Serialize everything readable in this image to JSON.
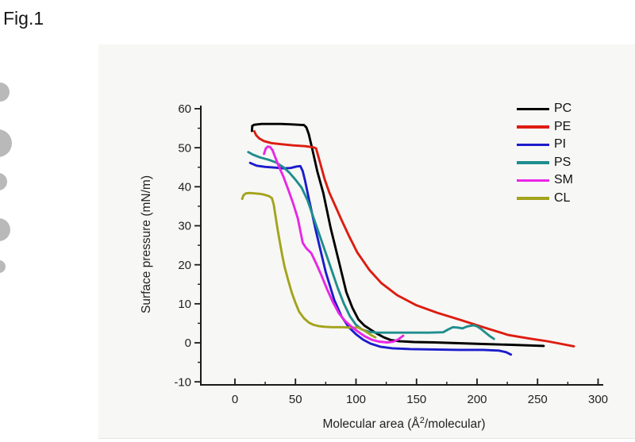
{
  "figure_label": "Fig.1",
  "chart_data": {
    "type": "line",
    "title": "",
    "xlabel": "Molecular area (Å²/molecular)",
    "xlabel_parts": {
      "pre": "Molecular area (Å",
      "sup": "2",
      "post": "/molecular)"
    },
    "ylabel": "Surface pressure (mN/m)",
    "xlim": [
      -28,
      305
    ],
    "ylim": [
      -10.8,
      60.8
    ],
    "x_ticks": [
      0,
      50,
      100,
      150,
      200,
      250,
      300
    ],
    "x_minor_ticks": [
      25,
      75,
      125,
      175,
      225,
      275
    ],
    "y_ticks": [
      -10,
      0,
      10,
      20,
      30,
      40,
      50,
      60
    ],
    "y_minor_ticks": [
      -5,
      5,
      15,
      25,
      35,
      45,
      55
    ],
    "grid": false,
    "legend": {
      "position": "top-right",
      "entries": [
        "PC",
        "PE",
        "PI",
        "PS",
        "SM",
        "CL"
      ]
    },
    "series": [
      {
        "name": "PC",
        "color": "#000000",
        "points": [
          [
            14,
            54.3
          ],
          [
            14.3,
            55.6
          ],
          [
            16,
            55.9
          ],
          [
            22,
            56.1
          ],
          [
            30,
            56.1
          ],
          [
            38,
            56.1
          ],
          [
            46,
            56.0
          ],
          [
            52,
            55.9
          ],
          [
            57,
            55.8
          ],
          [
            59,
            55.2
          ],
          [
            61,
            53.5
          ],
          [
            64,
            49.5
          ],
          [
            68,
            44.0
          ],
          [
            73,
            38.4
          ],
          [
            79,
            29.5
          ],
          [
            86,
            20.7
          ],
          [
            92,
            13.0
          ],
          [
            97,
            9.0
          ],
          [
            102,
            6.0
          ],
          [
            107,
            4.4
          ],
          [
            112,
            3.4
          ],
          [
            117,
            2.4
          ],
          [
            123,
            1.4
          ],
          [
            129,
            0.7
          ],
          [
            136,
            0.4
          ],
          [
            148,
            0.2
          ],
          [
            165,
            0.1
          ],
          [
            185,
            -0.1
          ],
          [
            205,
            -0.3
          ],
          [
            228,
            -0.5
          ],
          [
            255,
            -0.8
          ]
        ]
      },
      {
        "name": "PE",
        "color": "#dd1c10",
        "points": [
          [
            16,
            54.2
          ],
          [
            17.5,
            53.2
          ],
          [
            20,
            52.4
          ],
          [
            24,
            51.7
          ],
          [
            30,
            51.2
          ],
          [
            38,
            50.9
          ],
          [
            48,
            50.6
          ],
          [
            58,
            50.4
          ],
          [
            65,
            50.1
          ],
          [
            67,
            49.8
          ],
          [
            70,
            46.5
          ],
          [
            74,
            42.0
          ],
          [
            78,
            38.5
          ],
          [
            83,
            35.0
          ],
          [
            88,
            31.5
          ],
          [
            94,
            27.5
          ],
          [
            101,
            23.2
          ],
          [
            111,
            18.7
          ],
          [
            121,
            15.3
          ],
          [
            134,
            12.2
          ],
          [
            150,
            9.6
          ],
          [
            167,
            7.7
          ],
          [
            186,
            5.9
          ],
          [
            206,
            3.9
          ],
          [
            226,
            2.0
          ],
          [
            243,
            1.1
          ],
          [
            258,
            0.4
          ],
          [
            270,
            -0.3
          ],
          [
            280,
            -0.9
          ]
        ]
      },
      {
        "name": "PI",
        "color": "#1c1ccc",
        "points": [
          [
            12.5,
            46.1
          ],
          [
            18,
            45.4
          ],
          [
            25,
            45.1
          ],
          [
            33,
            44.9
          ],
          [
            40,
            44.7
          ],
          [
            46,
            44.8
          ],
          [
            51,
            45.2
          ],
          [
            54,
            45.3
          ],
          [
            56,
            44.0
          ],
          [
            58,
            41.5
          ],
          [
            61,
            37.0
          ],
          [
            67,
            28.5
          ],
          [
            75,
            18.1
          ],
          [
            82,
            11.0
          ],
          [
            88,
            6.8
          ],
          [
            94,
            4.0
          ],
          [
            100,
            2.2
          ],
          [
            106,
            0.8
          ],
          [
            112,
            -0.2
          ],
          [
            120,
            -1.0
          ],
          [
            130,
            -1.4
          ],
          [
            145,
            -1.6
          ],
          [
            165,
            -1.7
          ],
          [
            185,
            -1.8
          ],
          [
            205,
            -1.8
          ],
          [
            218,
            -2.0
          ],
          [
            224,
            -2.4
          ],
          [
            228,
            -3.0
          ]
        ]
      },
      {
        "name": "PS",
        "color": "#1e8e8e",
        "points": [
          [
            11,
            48.9
          ],
          [
            15,
            48.2
          ],
          [
            21,
            47.5
          ],
          [
            28,
            46.9
          ],
          [
            34,
            46.2
          ],
          [
            40,
            45.0
          ],
          [
            45,
            43.6
          ],
          [
            50,
            41.8
          ],
          [
            55,
            39.8
          ],
          [
            60,
            36.5
          ],
          [
            65,
            32.0
          ],
          [
            70,
            27.5
          ],
          [
            75,
            23.0
          ],
          [
            80,
            18.5
          ],
          [
            85,
            14.0
          ],
          [
            90,
            10.0
          ],
          [
            95,
            6.8
          ],
          [
            100,
            4.6
          ],
          [
            105,
            3.4
          ],
          [
            111,
            2.8
          ],
          [
            118,
            2.6
          ],
          [
            130,
            2.6
          ],
          [
            145,
            2.6
          ],
          [
            160,
            2.6
          ],
          [
            172,
            2.7
          ],
          [
            176,
            3.4
          ],
          [
            180,
            4.0
          ],
          [
            184,
            3.9
          ],
          [
            188,
            3.7
          ],
          [
            192,
            4.2
          ],
          [
            197,
            4.5
          ],
          [
            200,
            4.2
          ],
          [
            203,
            3.6
          ],
          [
            207,
            2.6
          ],
          [
            211,
            1.6
          ],
          [
            214,
            1.0
          ]
        ]
      },
      {
        "name": "SM",
        "color": "#e926e6",
        "points": [
          [
            24,
            48.4
          ],
          [
            25.5,
            49.8
          ],
          [
            27,
            50.3
          ],
          [
            29,
            50.2
          ],
          [
            31,
            49.4
          ],
          [
            33,
            47.8
          ],
          [
            36,
            45.4
          ],
          [
            40,
            42.6
          ],
          [
            44,
            39.3
          ],
          [
            48,
            35.8
          ],
          [
            52,
            31.8
          ],
          [
            56,
            25.6
          ],
          [
            59,
            24.2
          ],
          [
            63,
            23.0
          ],
          [
            67,
            20.4
          ],
          [
            71,
            17.6
          ],
          [
            76,
            13.8
          ],
          [
            81,
            10.4
          ],
          [
            86,
            7.5
          ],
          [
            91,
            5.6
          ],
          [
            96,
            4.2
          ],
          [
            101,
            3.0
          ],
          [
            107,
            1.7
          ],
          [
            113,
            0.8
          ],
          [
            119,
            0.3
          ],
          [
            126,
            0.1
          ],
          [
            131,
            0.3
          ],
          [
            135,
            0.9
          ],
          [
            139,
            1.8
          ]
        ]
      },
      {
        "name": "CL",
        "color": "#a3a31c",
        "points": [
          [
            6,
            36.9
          ],
          [
            7,
            37.8
          ],
          [
            9,
            38.3
          ],
          [
            12,
            38.4
          ],
          [
            16,
            38.3
          ],
          [
            20,
            38.2
          ],
          [
            24,
            38.0
          ],
          [
            28,
            37.6
          ],
          [
            30.5,
            37.1
          ],
          [
            32,
            35.5
          ],
          [
            33.5,
            32.5
          ],
          [
            35,
            29.5
          ],
          [
            37,
            26.0
          ],
          [
            39,
            22.5
          ],
          [
            41,
            19.5
          ],
          [
            44,
            16.0
          ],
          [
            47,
            12.8
          ],
          [
            50,
            10.2
          ],
          [
            53,
            8.0
          ],
          [
            57,
            6.3
          ],
          [
            61,
            5.2
          ],
          [
            65,
            4.6
          ],
          [
            69,
            4.3
          ],
          [
            74,
            4.1
          ],
          [
            80,
            4.0
          ],
          [
            88,
            4.0
          ],
          [
            96,
            3.9
          ],
          [
            102,
            3.9
          ],
          [
            106,
            3.3
          ],
          [
            110,
            2.5
          ],
          [
            113,
            1.9
          ],
          [
            116,
            1.4
          ]
        ]
      }
    ]
  }
}
